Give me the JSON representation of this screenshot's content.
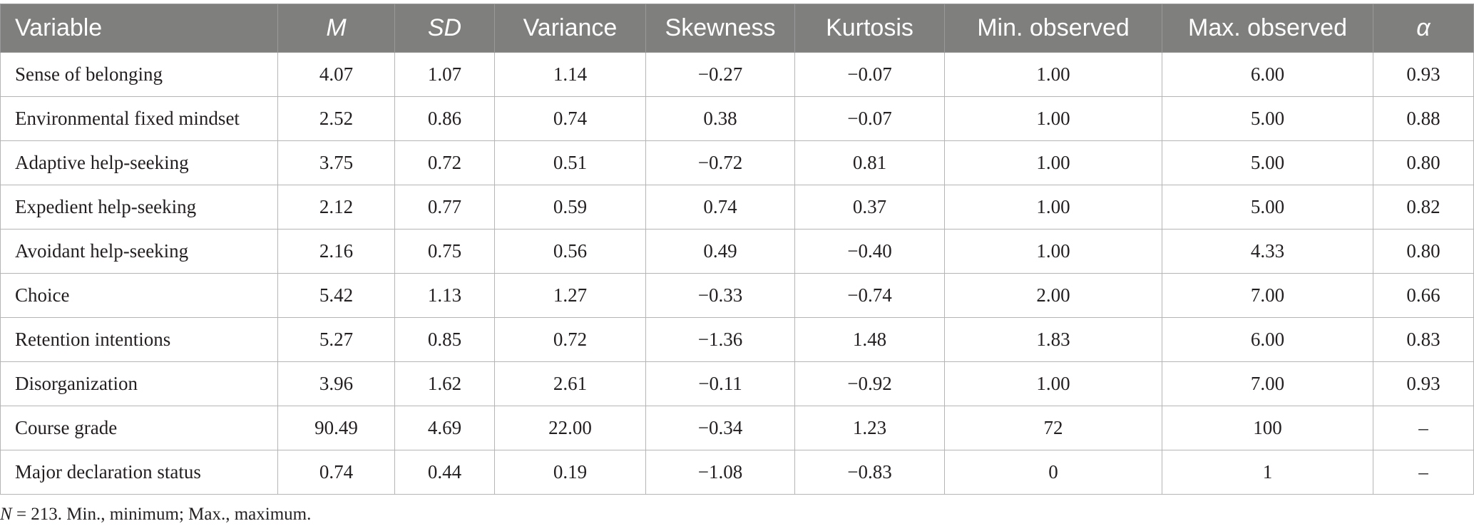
{
  "table": {
    "headers": [
      "Variable",
      "M",
      "SD",
      "Variance",
      "Skewness",
      "Kurtosis",
      "Min. observed",
      "Max. observed",
      "α"
    ],
    "rows": [
      [
        "Sense of belonging",
        "4.07",
        "1.07",
        "1.14",
        "−0.27",
        "−0.07",
        "1.00",
        "6.00",
        "0.93"
      ],
      [
        "Environmental fixed mindset",
        "2.52",
        "0.86",
        "0.74",
        "0.38",
        "−0.07",
        "1.00",
        "5.00",
        "0.88"
      ],
      [
        "Adaptive help-seeking",
        "3.75",
        "0.72",
        "0.51",
        "−0.72",
        "0.81",
        "1.00",
        "5.00",
        "0.80"
      ],
      [
        "Expedient help-seeking",
        "2.12",
        "0.77",
        "0.59",
        "0.74",
        "0.37",
        "1.00",
        "5.00",
        "0.82"
      ],
      [
        "Avoidant help-seeking",
        "2.16",
        "0.75",
        "0.56",
        "0.49",
        "−0.40",
        "1.00",
        "4.33",
        "0.80"
      ],
      [
        "Choice",
        "5.42",
        "1.13",
        "1.27",
        "−0.33",
        "−0.74",
        "2.00",
        "7.00",
        "0.66"
      ],
      [
        "Retention intentions",
        "5.27",
        "0.85",
        "0.72",
        "−1.36",
        "1.48",
        "1.83",
        "6.00",
        "0.83"
      ],
      [
        "Disorganization",
        "3.96",
        "1.62",
        "2.61",
        "−0.11",
        "−0.92",
        "1.00",
        "7.00",
        "0.93"
      ],
      [
        "Course grade",
        "90.49",
        "4.69",
        "22.00",
        "−0.34",
        "1.23",
        "72",
        "100",
        "–"
      ],
      [
        "Major declaration status",
        "0.74",
        "0.44",
        "0.19",
        "−1.08",
        "−0.83",
        "0",
        "1",
        "–"
      ]
    ]
  },
  "note": {
    "n_symbol": "N",
    "rest": " = 213. Min., minimum; Max., maximum."
  }
}
